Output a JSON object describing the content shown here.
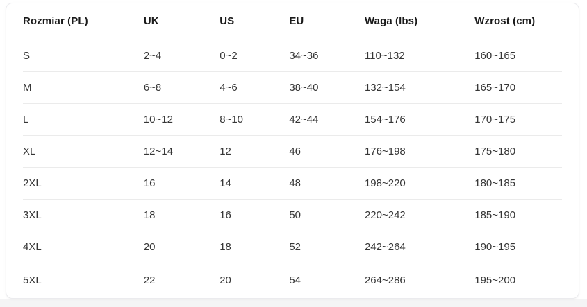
{
  "page": {
    "background_color": "#ffffff",
    "bottom_strip_color": "#f4f4f5"
  },
  "size_chart": {
    "columns": [
      "Rozmiar (PL)",
      "UK",
      "US",
      "EU",
      "Waga (lbs)",
      "Wzrost (cm)"
    ],
    "rows": [
      [
        "S",
        "2~4",
        "0~2",
        "34~36",
        "110~132",
        "160~165"
      ],
      [
        "M",
        "6~8",
        "4~6",
        "38~40",
        "132~154",
        "165~170"
      ],
      [
        "L",
        "10~12",
        "8~10",
        "42~44",
        "154~176",
        "170~175"
      ],
      [
        "XL",
        "12~14",
        "12",
        "46",
        "176~198",
        "175~180"
      ],
      [
        "2XL",
        "16",
        "14",
        "48",
        "198~220",
        "180~185"
      ],
      [
        "3XL",
        "18",
        "16",
        "50",
        "220~242",
        "185~190"
      ],
      [
        "4XL",
        "20",
        "18",
        "52",
        "242~264",
        "190~195"
      ],
      [
        "5XL",
        "22",
        "20",
        "54",
        "264~286",
        "195~200"
      ]
    ],
    "colors": {
      "header_text": "#1a1a1a",
      "body_text": "#363636",
      "divider": "#ebebeb",
      "header_divider": "#e4e4e7",
      "card_border": "#ebebee",
      "card_background": "#ffffff"
    }
  }
}
